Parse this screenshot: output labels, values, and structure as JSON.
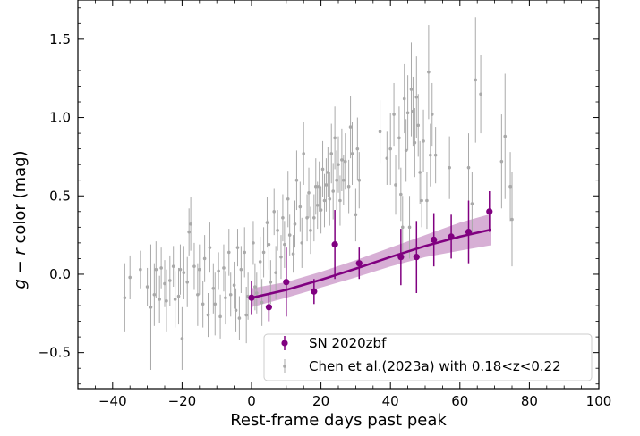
{
  "chart_data": {
    "type": "scatter",
    "title": "",
    "xlabel": "Rest-frame days past peak",
    "ylabel_parts": {
      "g": "g",
      "minus": " − ",
      "r": "r",
      "rest": " color (mag)"
    },
    "xlim": [
      -50,
      100
    ],
    "ylim": [
      -0.73,
      1.75
    ],
    "xticks": [
      -40,
      -20,
      0,
      20,
      40,
      60,
      80,
      100
    ],
    "xtick_labels": [
      "−40",
      "−20",
      "0",
      "20",
      "40",
      "60",
      "80",
      "100"
    ],
    "yticks": [
      -0.5,
      0.0,
      0.5,
      1.0,
      1.5
    ],
    "ytick_labels": [
      "−0.5",
      "0.0",
      "0.5",
      "1.0",
      "1.5"
    ],
    "grid": false,
    "legend_position": "lower-right",
    "colors": {
      "primary": "#800080",
      "band": "#c994c7",
      "comparison": "#a9a9a9"
    },
    "series": [
      {
        "name": "SN 2020zbf",
        "marker": "circle",
        "points": [
          {
            "x": 0,
            "y": -0.15,
            "err": 0.11
          },
          {
            "x": 5,
            "y": -0.21,
            "err": 0.09
          },
          {
            "x": 10,
            "y": -0.05,
            "err": 0.22
          },
          {
            "x": 18,
            "y": -0.11,
            "err": 0.08
          },
          {
            "x": 24,
            "y": 0.19,
            "err": 0.22
          },
          {
            "x": 31,
            "y": 0.07,
            "err": 0.1
          },
          {
            "x": 43,
            "y": 0.11,
            "err": 0.18
          },
          {
            "x": 47.5,
            "y": 0.11,
            "err": 0.23
          },
          {
            "x": 52.5,
            "y": 0.22,
            "err": 0.17
          },
          {
            "x": 57.5,
            "y": 0.24,
            "err": 0.14
          },
          {
            "x": 62.5,
            "y": 0.27,
            "err": 0.2
          },
          {
            "x": 68.5,
            "y": 0.4,
            "err": 0.13
          }
        ]
      },
      {
        "name": "Chen et al.(2023a) with 0.18<z<0.22",
        "marker": "small-circle",
        "points": [
          {
            "x": -36.5,
            "y": -0.15,
            "err": 0.22
          },
          {
            "x": -35,
            "y": -0.02,
            "err": 0.14
          },
          {
            "x": -32,
            "y": 0.03,
            "err": 0.12
          },
          {
            "x": -30,
            "y": -0.08,
            "err": 0.12
          },
          {
            "x": -29,
            "y": -0.21,
            "err": 0.4
          },
          {
            "x": -28,
            "y": -0.13,
            "err": 0.2
          },
          {
            "x": -27.5,
            "y": 0.03,
            "err": 0.18
          },
          {
            "x": -26.5,
            "y": -0.16,
            "err": 0.15
          },
          {
            "x": -26,
            "y": 0.04,
            "err": 0.13
          },
          {
            "x": -25,
            "y": -0.06,
            "err": 0.15
          },
          {
            "x": -24.5,
            "y": -0.17,
            "err": 0.2
          },
          {
            "x": -23.5,
            "y": -0.04,
            "err": 0.16
          },
          {
            "x": -22.5,
            "y": 0.05,
            "err": 0.13
          },
          {
            "x": -22,
            "y": -0.16,
            "err": 0.18
          },
          {
            "x": -21,
            "y": -0.14,
            "err": 0.18
          },
          {
            "x": -20.5,
            "y": 0.03,
            "err": 0.16
          },
          {
            "x": -20,
            "y": -0.41,
            "err": 0.2
          },
          {
            "x": -19.5,
            "y": 0.01,
            "err": 0.17
          },
          {
            "x": -18.5,
            "y": -0.05,
            "err": 0.16
          },
          {
            "x": -18,
            "y": 0.27,
            "err": 0.15
          },
          {
            "x": -17.5,
            "y": 0.32,
            "err": 0.17
          },
          {
            "x": -16.5,
            "y": 0.05,
            "err": 0.15
          },
          {
            "x": -15.5,
            "y": -0.13,
            "err": 0.2
          },
          {
            "x": -15,
            "y": 0.03,
            "err": 0.16
          },
          {
            "x": -14,
            "y": -0.19,
            "err": 0.15
          },
          {
            "x": -13.5,
            "y": 0.1,
            "err": 0.15
          },
          {
            "x": -12.5,
            "y": -0.26,
            "err": 0.14
          },
          {
            "x": -12,
            "y": 0.17,
            "err": 0.16
          },
          {
            "x": -11,
            "y": -0.09,
            "err": 0.16
          },
          {
            "x": -10.5,
            "y": -0.19,
            "err": 0.2
          },
          {
            "x": -9.5,
            "y": 0.02,
            "err": 0.12
          },
          {
            "x": -9,
            "y": -0.27,
            "err": 0.14
          },
          {
            "x": -8,
            "y": 0.04,
            "err": 0.15
          },
          {
            "x": -7.5,
            "y": -0.15,
            "err": 0.17
          },
          {
            "x": -6.5,
            "y": 0.14,
            "err": 0.15
          },
          {
            "x": -6,
            "y": -0.13,
            "err": 0.14
          },
          {
            "x": -5,
            "y": -0.07,
            "err": 0.15
          },
          {
            "x": -4.5,
            "y": -0.23,
            "err": 0.14
          },
          {
            "x": -4,
            "y": 0.17,
            "err": 0.12
          },
          {
            "x": -3.5,
            "y": -0.28,
            "err": 0.14
          },
          {
            "x": -3,
            "y": 0.03,
            "err": 0.15
          },
          {
            "x": -2,
            "y": 0.14,
            "err": 0.16
          },
          {
            "x": -1.5,
            "y": -0.26,
            "err": 0.18
          },
          {
            "x": -1,
            "y": -0.14,
            "err": 0.15
          },
          {
            "x": 0.5,
            "y": 0.2,
            "err": 0.14
          },
          {
            "x": 1,
            "y": -0.08,
            "err": 0.15
          },
          {
            "x": 1.5,
            "y": -0.12,
            "err": 0.13
          },
          {
            "x": 2.5,
            "y": 0.08,
            "err": 0.16
          },
          {
            "x": 3,
            "y": -0.18,
            "err": 0.15
          },
          {
            "x": 3.5,
            "y": 0.14,
            "err": 0.16
          },
          {
            "x": 4.5,
            "y": 0.33,
            "err": 0.16
          },
          {
            "x": 5,
            "y": 0.19,
            "err": 0.16
          },
          {
            "x": 5.5,
            "y": -0.05,
            "err": 0.14
          },
          {
            "x": 6.5,
            "y": 0.4,
            "err": 0.15
          },
          {
            "x": 7,
            "y": 0.01,
            "err": 0.17
          },
          {
            "x": 7.5,
            "y": 0.28,
            "err": 0.13
          },
          {
            "x": 8.5,
            "y": 0.11,
            "err": 0.14
          },
          {
            "x": 9,
            "y": 0.36,
            "err": 0.15
          },
          {
            "x": 9.5,
            "y": 0.19,
            "err": 0.15
          },
          {
            "x": 10.5,
            "y": 0.48,
            "err": 0.18
          },
          {
            "x": 11,
            "y": 0.25,
            "err": 0.13
          },
          {
            "x": 12,
            "y": 0.13,
            "err": 0.12
          },
          {
            "x": 12.5,
            "y": 0.32,
            "err": 0.15
          },
          {
            "x": 13,
            "y": 0.6,
            "err": 0.19
          },
          {
            "x": 14,
            "y": 0.43,
            "err": 0.16
          },
          {
            "x": 14.5,
            "y": 0.2,
            "err": 0.16
          },
          {
            "x": 15,
            "y": 0.77,
            "err": 0.2
          },
          {
            "x": 16,
            "y": 0.36,
            "err": 0.15
          },
          {
            "x": 16.5,
            "y": 0.52,
            "err": 0.16
          },
          {
            "x": 17,
            "y": 0.28,
            "err": 0.15
          },
          {
            "x": 18,
            "y": 0.36,
            "err": 0.15
          },
          {
            "x": 18.5,
            "y": 0.56,
            "err": 0.18
          },
          {
            "x": 19,
            "y": 0.44,
            "err": 0.15
          },
          {
            "x": 19.5,
            "y": 0.56,
            "err": 0.16
          },
          {
            "x": 20,
            "y": 0.41,
            "err": 0.15
          },
          {
            "x": 20.5,
            "y": 0.67,
            "err": 0.18
          },
          {
            "x": 21,
            "y": 0.47,
            "err": 0.17
          },
          {
            "x": 21.5,
            "y": 0.57,
            "err": 0.17
          },
          {
            "x": 22,
            "y": 0.65,
            "err": 0.16
          },
          {
            "x": 22.5,
            "y": 0.48,
            "err": 0.17
          },
          {
            "x": 23,
            "y": 0.77,
            "err": 0.19
          },
          {
            "x": 23.5,
            "y": 0.53,
            "err": 0.18
          },
          {
            "x": 24,
            "y": 0.87,
            "err": 0.2
          },
          {
            "x": 24.5,
            "y": 0.6,
            "err": 0.19
          },
          {
            "x": 25,
            "y": 0.7,
            "err": 0.18
          },
          {
            "x": 25.5,
            "y": 0.47,
            "err": 0.16
          },
          {
            "x": 26,
            "y": 0.73,
            "err": 0.2
          },
          {
            "x": 26.5,
            "y": 0.6,
            "err": 0.16
          },
          {
            "x": 27,
            "y": 0.72,
            "err": 0.18
          },
          {
            "x": 28,
            "y": 0.56,
            "err": 0.17
          },
          {
            "x": 28.5,
            "y": 0.94,
            "err": 0.2
          },
          {
            "x": 29,
            "y": 0.77,
            "err": 0.2
          },
          {
            "x": 30,
            "y": 0.38,
            "err": 0.17
          },
          {
            "x": 30.5,
            "y": 0.8,
            "err": 0.2
          },
          {
            "x": 31,
            "y": 0.6,
            "err": 0.18
          },
          {
            "x": 37,
            "y": 0.91,
            "err": 0.2
          },
          {
            "x": 39,
            "y": 0.74,
            "err": 0.17
          },
          {
            "x": 40,
            "y": 0.8,
            "err": 0.23
          },
          {
            "x": 41,
            "y": 1.02,
            "err": 0.2
          },
          {
            "x": 41.5,
            "y": 0.57,
            "err": 0.19
          },
          {
            "x": 42.5,
            "y": 0.87,
            "err": 0.2
          },
          {
            "x": 43,
            "y": 0.51,
            "err": 0.17
          },
          {
            "x": 43.5,
            "y": 0.3,
            "err": 0.2
          },
          {
            "x": 44,
            "y": 1.12,
            "err": 0.22
          },
          {
            "x": 44.5,
            "y": 0.79,
            "err": 0.2
          },
          {
            "x": 45,
            "y": 1.03,
            "err": 0.24
          },
          {
            "x": 45.5,
            "y": 0.3,
            "err": 0.2
          },
          {
            "x": 46,
            "y": 1.18,
            "err": 0.3
          },
          {
            "x": 46.5,
            "y": 1.04,
            "err": 0.22
          },
          {
            "x": 47,
            "y": 0.84,
            "err": 0.22
          },
          {
            "x": 47.5,
            "y": 1.13,
            "err": 0.26
          },
          {
            "x": 48,
            "y": 0.95,
            "err": 0.2
          },
          {
            "x": 48.5,
            "y": 0.65,
            "err": 0.2
          },
          {
            "x": 49,
            "y": 0.47,
            "err": 0.17
          },
          {
            "x": 49.5,
            "y": 0.85,
            "err": 0.2
          },
          {
            "x": 50.5,
            "y": 0.47,
            "err": 0.18
          },
          {
            "x": 51,
            "y": 1.29,
            "err": 0.3
          },
          {
            "x": 51.5,
            "y": 0.76,
            "err": 0.2
          },
          {
            "x": 52,
            "y": 1.02,
            "err": 0.2
          },
          {
            "x": 53,
            "y": 0.76,
            "err": 0.18
          },
          {
            "x": 57,
            "y": 0.68,
            "err": 0.2
          },
          {
            "x": 62.5,
            "y": 0.68,
            "err": 0.22
          },
          {
            "x": 63.5,
            "y": 0.45,
            "err": 0.2
          },
          {
            "x": 64.5,
            "y": 1.24,
            "err": 0.4
          },
          {
            "x": 66,
            "y": 1.15,
            "err": 0.25
          },
          {
            "x": 72,
            "y": 0.72,
            "err": 0.3
          },
          {
            "x": 73,
            "y": 0.88,
            "err": 0.4
          },
          {
            "x": 74.5,
            "y": 0.56,
            "err": 0.22
          },
          {
            "x": 75,
            "y": 0.35,
            "err": 0.3
          }
        ]
      }
    ],
    "fit": {
      "x": [
        0,
        10,
        20,
        30,
        40,
        50,
        60,
        69
      ],
      "y": [
        -0.15,
        -0.1,
        -0.035,
        0.035,
        0.11,
        0.18,
        0.24,
        0.285
      ],
      "upper": [
        -0.09,
        -0.05,
        0.015,
        0.09,
        0.17,
        0.25,
        0.33,
        0.385
      ],
      "lower": [
        -0.21,
        -0.15,
        -0.085,
        -0.02,
        0.05,
        0.11,
        0.15,
        0.185
      ]
    }
  }
}
